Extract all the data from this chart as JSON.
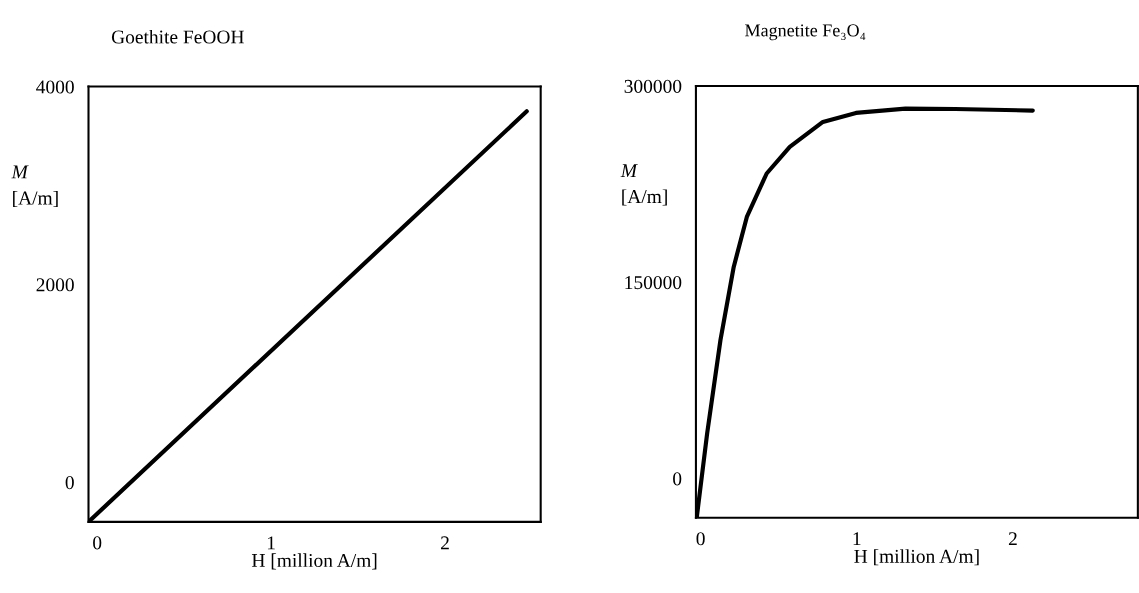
{
  "chart_data": [
    {
      "type": "line",
      "title": "Goethite FeOOH",
      "xlabel": "H [million A/m]",
      "ylabel": "M\n[A/m]",
      "x": [
        -0.05,
        2.47
      ],
      "series": [
        {
          "color": "#000000",
          "values": [
            -400,
            3750
          ]
        }
      ],
      "xlim": [
        -0.05,
        2.55
      ],
      "xticks": [
        0,
        1,
        2
      ],
      "ylim": [
        -400,
        4000
      ],
      "yticks": [
        0,
        2000,
        4000
      ],
      "grid": false,
      "legend": false,
      "marker": "none",
      "line_style": "solid"
    },
    {
      "type": "line",
      "title": "Magnetite Fe₃O₄",
      "xlabel": "H [million A/m]",
      "ylabel": "M\n[A/m]",
      "x": [
        -0.025,
        0.042,
        0.127,
        0.212,
        0.296,
        0.423,
        0.571,
        0.783,
        0.995,
        1.312,
        1.63,
        2.127
      ],
      "series": [
        {
          "color": "#000000",
          "values": [
            -30000,
            34500,
            105700,
            161700,
            199900,
            233100,
            253400,
            272500,
            279400,
            282700,
            282400,
            281200
          ]
        }
      ],
      "xlim": [
        -0.03,
        2.8
      ],
      "xticks": [
        0,
        1,
        2
      ],
      "ylim": [
        -30000,
        300000
      ],
      "yticks": [
        0,
        150000,
        300000
      ],
      "grid": false,
      "legend": false,
      "marker": "none",
      "line_style": "solid"
    }
  ]
}
